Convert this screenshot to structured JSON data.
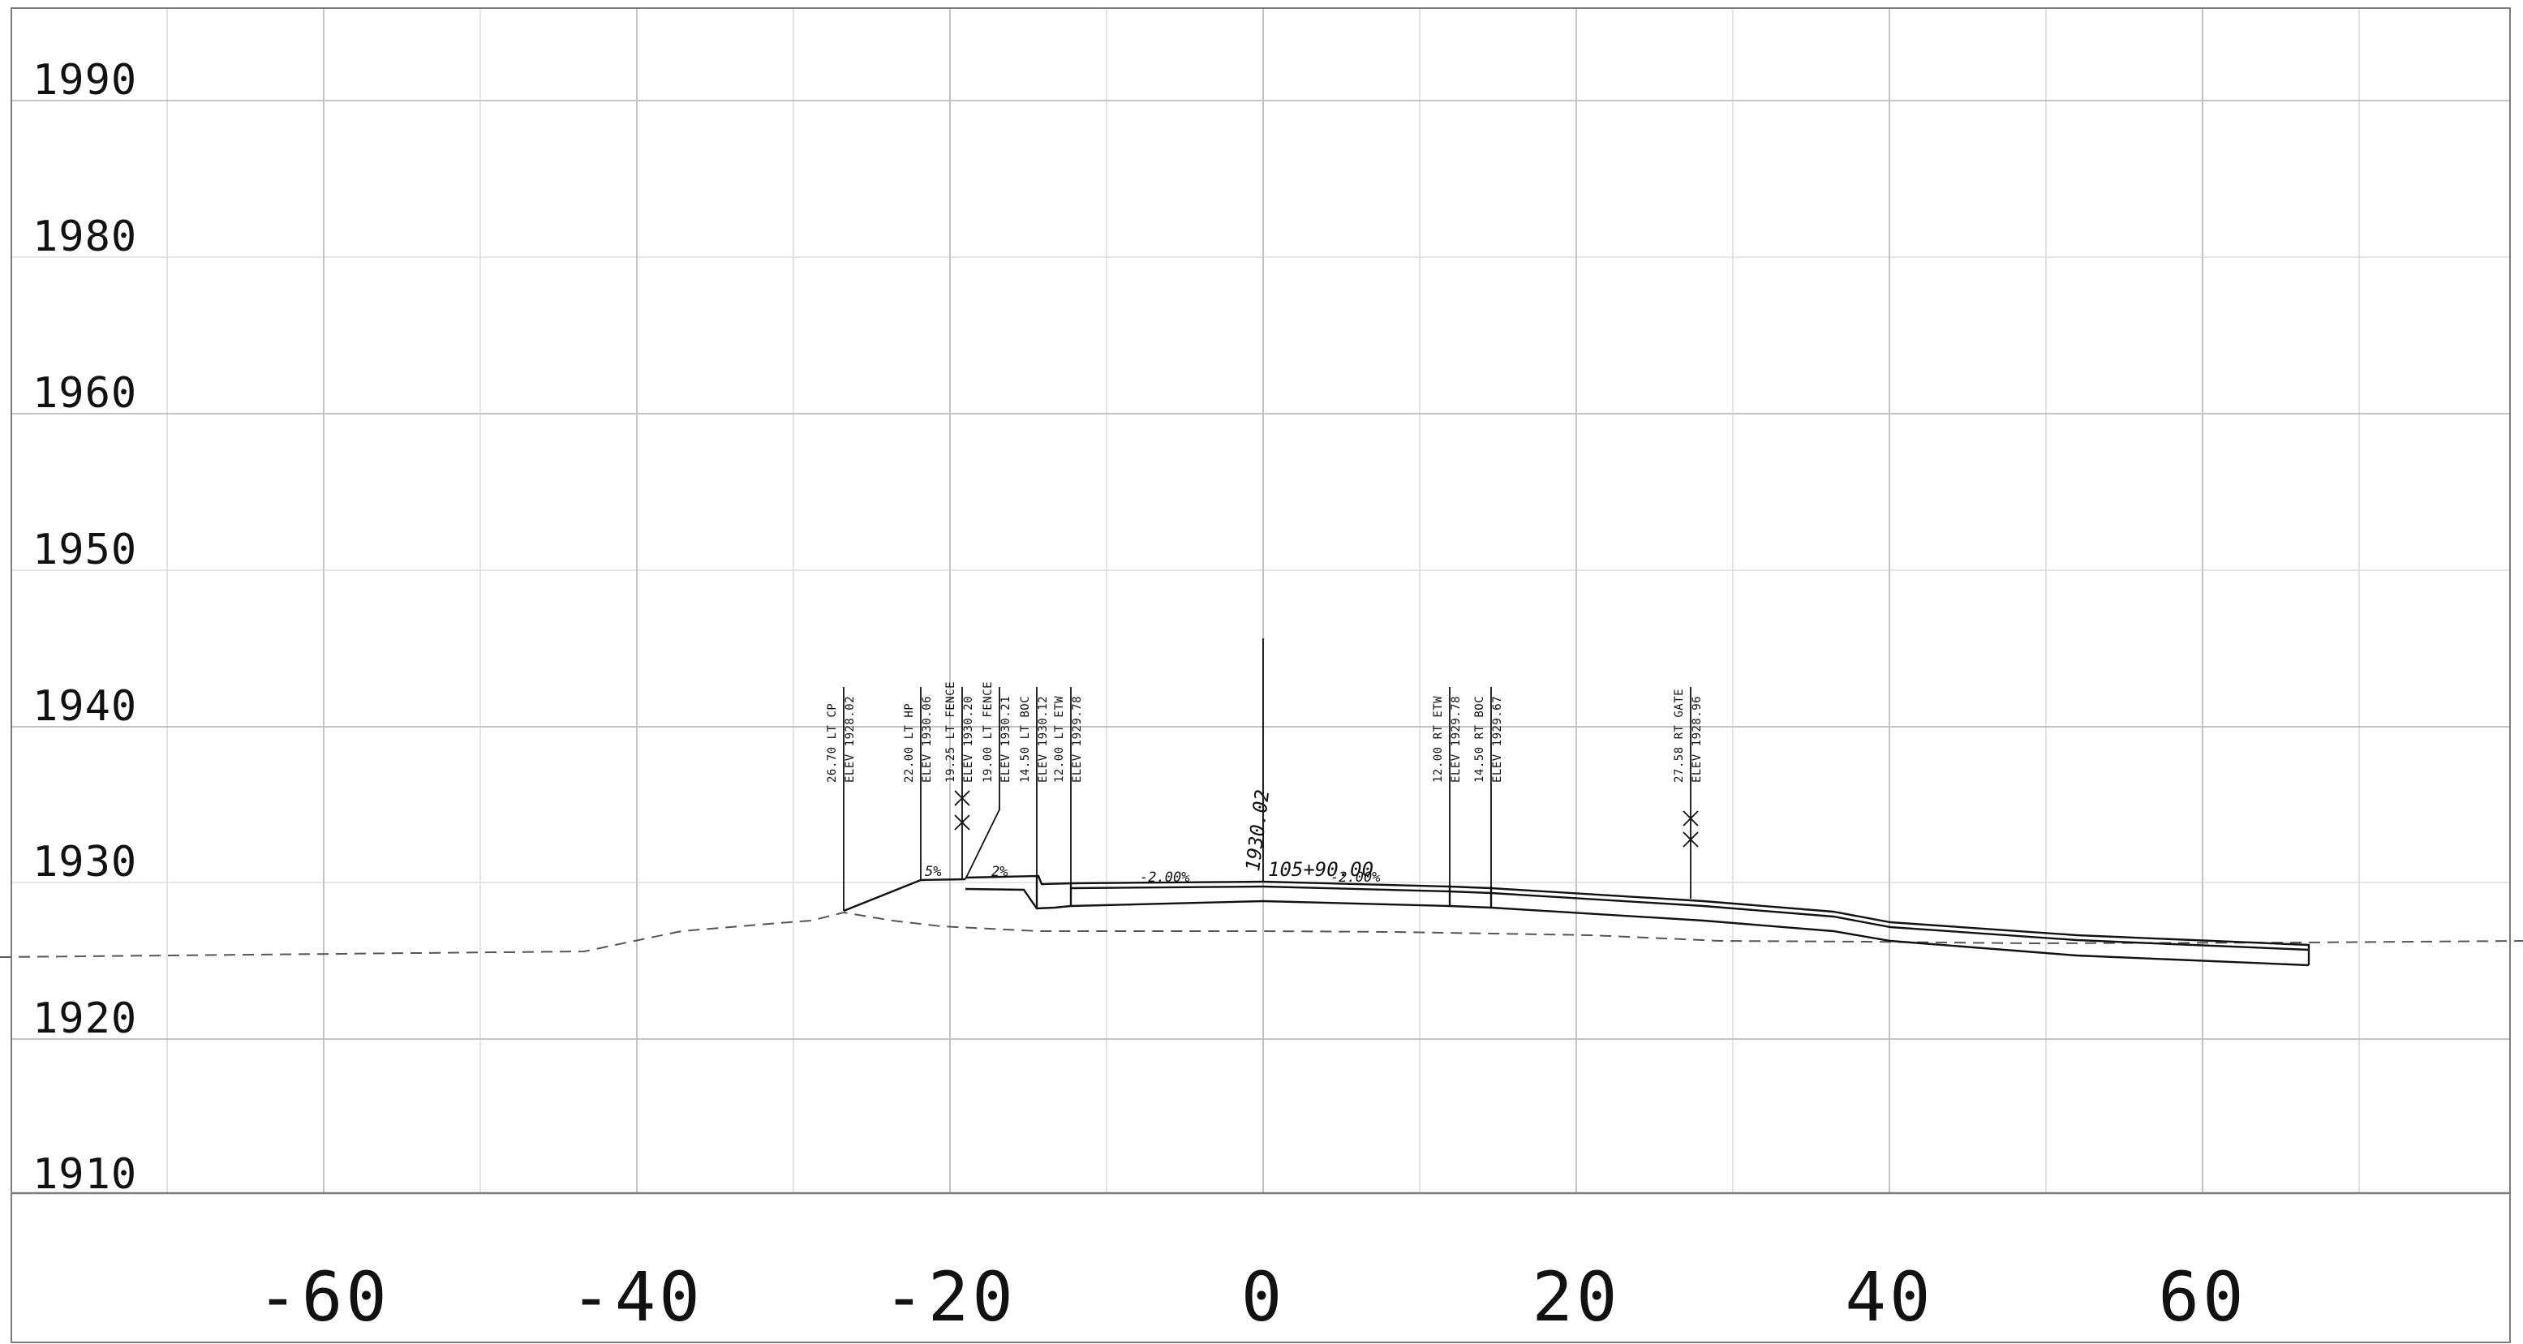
{
  "elevation_axis": {
    "labels": [
      "1990",
      "1980",
      "1960",
      "1950",
      "1940",
      "1930",
      "1920",
      "1910"
    ]
  },
  "station_axis": {
    "labels": [
      "-60",
      "-40",
      "-20",
      "0",
      "20",
      "40",
      "60"
    ]
  },
  "callouts": [
    {
      "id": "lt-cp",
      "line1": "26.70 LT CP",
      "line2": "ELEV 1928.02"
    },
    {
      "id": "lt-hp",
      "line1": "22.00 LT HP",
      "line2": "ELEV 1930.06"
    },
    {
      "id": "lt-fence-1925",
      "line1": "19.25 LT FENCE",
      "line2": "ELEV 1930.20"
    },
    {
      "id": "lt-fence-1900",
      "line1": "19.00 LT FENCE",
      "line2": "ELEV 1930.21"
    },
    {
      "id": "lt-boc",
      "line1": "14.50 LT BOC",
      "line2": "ELEV 1930.12"
    },
    {
      "id": "lt-etw",
      "line1": "12.00 LT ETW",
      "line2": "ELEV 1929.78"
    },
    {
      "id": "rt-etw",
      "line1": "12.00 RT ETW",
      "line2": "ELEV 1929.78"
    },
    {
      "id": "rt-boc",
      "line1": "14.50 RT BOC",
      "line2": "ELEV 1929.67"
    },
    {
      "id": "rt-gate",
      "line1": "27.58 RT GATE",
      "line2": "ELEV 1928.96"
    }
  ],
  "slopes": {
    "shoulder": "5%",
    "walk": "2%",
    "left_lane": "-2.00%",
    "right_lane": "-2.00%"
  },
  "centerline": {
    "elevation": "1930.02",
    "station": "105+90.00"
  },
  "colors": {
    "grid_major": "#c4c4c4",
    "grid_minor": "#dedede",
    "linework": "#111111",
    "existing_ground": "#555555"
  }
}
